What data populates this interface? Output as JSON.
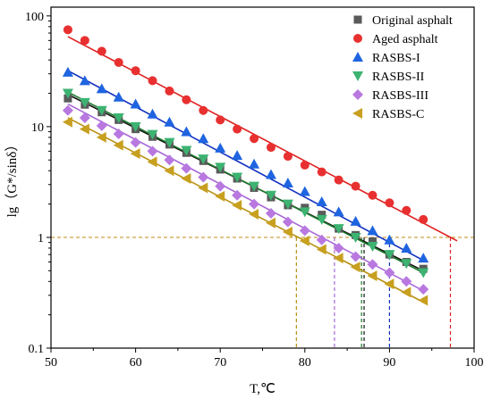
{
  "chart_data": {
    "type": "scatter",
    "title": "",
    "xlabel": "T,℃",
    "ylabel": "lg（G*/sinδ）",
    "xlim": [
      50,
      100
    ],
    "ylim": [
      0.1,
      120
    ],
    "yscale": "log",
    "grid": false,
    "legend_position": "top-right",
    "x_ticks": [
      50,
      60,
      70,
      80,
      90,
      100
    ],
    "y_ticks": [
      0.1,
      1,
      10,
      100
    ],
    "x_tick_labels": [
      "50",
      "60",
      "70",
      "80",
      "90",
      "100"
    ],
    "y_tick_labels": [
      "0.1",
      "1",
      "10",
      "100"
    ],
    "reference_y": 1,
    "series": [
      {
        "name": "Original asphalt",
        "marker": "square",
        "color": "#5a5a5a",
        "line_color": "#111111",
        "x": [
          52,
          54,
          56,
          58,
          60,
          62,
          64,
          66,
          68,
          70,
          72,
          74,
          76,
          78,
          80,
          82,
          84,
          86,
          88,
          90,
          92,
          94
        ],
        "y": [
          18.0,
          15.8,
          13.5,
          11.5,
          9.5,
          8.1,
          6.9,
          5.8,
          4.9,
          4.1,
          3.4,
          2.8,
          2.3,
          1.95,
          1.85,
          1.6,
          1.2,
          1.05,
          0.92,
          0.7,
          0.6,
          0.52
        ],
        "fit": [
          [
            52,
            19.5
          ],
          [
            94,
            0.5
          ]
        ],
        "crossing_t": 87.0
      },
      {
        "name": "Aged asphalt",
        "marker": "circle",
        "color": "#e83030",
        "line_color": "#e02020",
        "x": [
          52,
          54,
          56,
          58,
          60,
          62,
          64,
          66,
          68,
          70,
          72,
          74,
          76,
          78,
          80,
          82,
          84,
          86,
          88,
          90,
          92,
          94
        ],
        "y": [
          75,
          60,
          48,
          38,
          32,
          26,
          21,
          17.5,
          14,
          11.5,
          9.5,
          7.8,
          6.5,
          5.4,
          4.5,
          3.9,
          3.3,
          2.9,
          2.4,
          2.05,
          1.75,
          1.45
        ],
        "fit": [
          [
            52,
            65
          ],
          [
            98,
            0.93
          ]
        ],
        "crossing_t": 97.2
      },
      {
        "name": "RASBS-I",
        "marker": "triangle-up",
        "color": "#1f64e0",
        "line_color": "#1030c0",
        "x": [
          52,
          54,
          56,
          58,
          60,
          62,
          64,
          66,
          68,
          70,
          72,
          74,
          76,
          78,
          80,
          82,
          84,
          86,
          88,
          90,
          92,
          94
        ],
        "y": [
          31,
          26,
          22,
          18.5,
          16,
          13,
          11,
          9,
          7.8,
          6.4,
          5.5,
          4.6,
          3.7,
          3.1,
          2.6,
          2.1,
          1.7,
          1.4,
          1.15,
          0.95,
          0.8,
          0.65
        ],
        "fit": [
          [
            52,
            32
          ],
          [
            94,
            0.62
          ]
        ],
        "crossing_t": 90.0
      },
      {
        "name": "RASBS-II",
        "marker": "triangle-down",
        "color": "#3cb371",
        "line_color": "#1c7a2a",
        "x": [
          52,
          54,
          56,
          58,
          60,
          62,
          64,
          66,
          68,
          70,
          72,
          74,
          76,
          78,
          80,
          82,
          84,
          86,
          88,
          90,
          92,
          94
        ],
        "y": [
          20,
          16.5,
          14,
          12,
          10,
          8.5,
          7.2,
          6.1,
          5.1,
          4.3,
          3.5,
          2.9,
          2.4,
          2.0,
          1.7,
          1.45,
          1.2,
          1.0,
          0.83,
          0.7,
          0.58,
          0.48
        ],
        "fit": [
          [
            52,
            20.5
          ],
          [
            94,
            0.48
          ]
        ],
        "crossing_t": 86.7
      },
      {
        "name": "RASBS-III",
        "marker": "diamond",
        "color": "#b878e0",
        "line_color": "#a868d8",
        "x": [
          52,
          54,
          56,
          58,
          60,
          62,
          64,
          66,
          68,
          70,
          72,
          74,
          76,
          78,
          80,
          82,
          84,
          86,
          88,
          90,
          92,
          94
        ],
        "y": [
          14,
          12,
          10.2,
          8.6,
          7.2,
          6.0,
          5.0,
          4.2,
          3.5,
          2.9,
          2.4,
          2.0,
          1.65,
          1.38,
          1.15,
          0.95,
          0.8,
          0.67,
          0.57,
          0.48,
          0.4,
          0.34
        ],
        "fit": [
          [
            52,
            16
          ],
          [
            94,
            0.33
          ]
        ],
        "crossing_t": 83.5
      },
      {
        "name": "RASBS-C",
        "marker": "triangle-left",
        "color": "#c8a020",
        "line_color": "#b89010",
        "x": [
          52,
          54,
          56,
          58,
          60,
          62,
          64,
          66,
          68,
          70,
          72,
          74,
          76,
          78,
          80,
          82,
          84,
          86,
          88,
          90,
          92,
          94
        ],
        "y": [
          11,
          9.5,
          8.0,
          6.8,
          5.7,
          4.8,
          4.0,
          3.4,
          2.8,
          2.35,
          1.95,
          1.62,
          1.35,
          1.12,
          0.93,
          0.78,
          0.65,
          0.54,
          0.45,
          0.38,
          0.32,
          0.27
        ],
        "fit": [
          [
            52,
            12
          ],
          [
            94,
            0.26
          ]
        ],
        "crossing_t": 79.0
      }
    ]
  }
}
